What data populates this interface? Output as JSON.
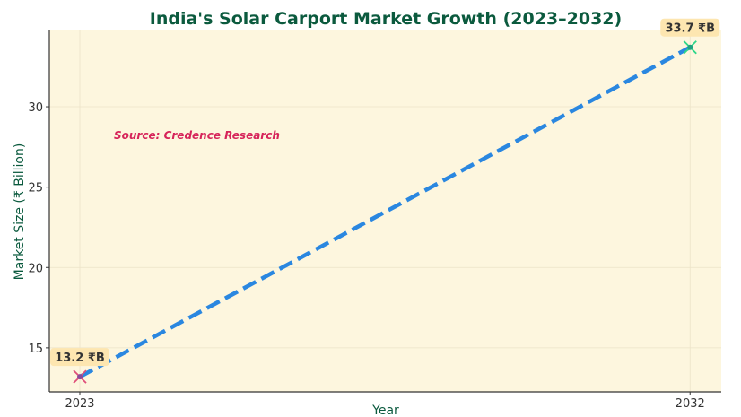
{
  "chart_data": {
    "type": "line",
    "title": "India's Solar Carport Market Growth (2023–2032)",
    "xlabel": "Year",
    "ylabel": "Market Size (₹ Billion)",
    "annotation": "Source: Credence Research",
    "x": [
      2023,
      2032
    ],
    "series": [
      {
        "values": [
          13.2,
          33.7
        ],
        "color": "#2a87e0",
        "style": "dashed"
      }
    ],
    "data_labels": [
      "13.2 ₹B",
      "33.7 ₹B"
    ],
    "marker_colors": [
      "#e0507a",
      "#2ed68a"
    ],
    "x_ticks": [
      2023,
      2032
    ],
    "y_ticks": [
      15,
      20,
      25,
      30
    ],
    "xlim": [
      2022.55,
      2032.46
    ],
    "ylim": [
      12.26,
      34.8
    ],
    "grid": true,
    "colors": {
      "plot_bg": "#fdf6de",
      "title": "#0b5a3e",
      "annotation": "#d6245a",
      "label_bg": "#fde6b0"
    }
  }
}
